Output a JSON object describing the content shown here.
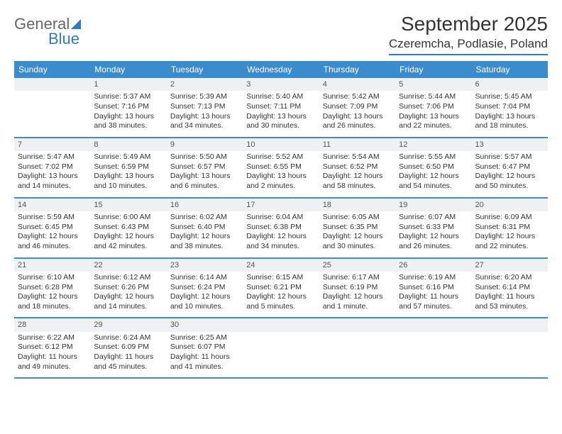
{
  "logo": {
    "word1": "General",
    "word2": "Blue"
  },
  "title": "September 2025",
  "location": "Czeremcha, Podlasie, Poland",
  "dow": [
    "Sunday",
    "Monday",
    "Tuesday",
    "Wednesday",
    "Thursday",
    "Friday",
    "Saturday"
  ],
  "colors": {
    "accent": "#3c8ccc",
    "logo_blue": "#2f7ac0",
    "daynum_bg": "#eef0f1",
    "text": "#333333",
    "bg": "#ffffff"
  },
  "weeks": [
    [
      {
        "n": "",
        "sunrise": "",
        "sunset": "",
        "daylight": ""
      },
      {
        "n": "1",
        "sunrise": "Sunrise: 5:37 AM",
        "sunset": "Sunset: 7:16 PM",
        "daylight": "Daylight: 13 hours and 38 minutes."
      },
      {
        "n": "2",
        "sunrise": "Sunrise: 5:39 AM",
        "sunset": "Sunset: 7:13 PM",
        "daylight": "Daylight: 13 hours and 34 minutes."
      },
      {
        "n": "3",
        "sunrise": "Sunrise: 5:40 AM",
        "sunset": "Sunset: 7:11 PM",
        "daylight": "Daylight: 13 hours and 30 minutes."
      },
      {
        "n": "4",
        "sunrise": "Sunrise: 5:42 AM",
        "sunset": "Sunset: 7:09 PM",
        "daylight": "Daylight: 13 hours and 26 minutes."
      },
      {
        "n": "5",
        "sunrise": "Sunrise: 5:44 AM",
        "sunset": "Sunset: 7:06 PM",
        "daylight": "Daylight: 13 hours and 22 minutes."
      },
      {
        "n": "6",
        "sunrise": "Sunrise: 5:45 AM",
        "sunset": "Sunset: 7:04 PM",
        "daylight": "Daylight: 13 hours and 18 minutes."
      }
    ],
    [
      {
        "n": "7",
        "sunrise": "Sunrise: 5:47 AM",
        "sunset": "Sunset: 7:02 PM",
        "daylight": "Daylight: 13 hours and 14 minutes."
      },
      {
        "n": "8",
        "sunrise": "Sunrise: 5:49 AM",
        "sunset": "Sunset: 6:59 PM",
        "daylight": "Daylight: 13 hours and 10 minutes."
      },
      {
        "n": "9",
        "sunrise": "Sunrise: 5:50 AM",
        "sunset": "Sunset: 6:57 PM",
        "daylight": "Daylight: 13 hours and 6 minutes."
      },
      {
        "n": "10",
        "sunrise": "Sunrise: 5:52 AM",
        "sunset": "Sunset: 6:55 PM",
        "daylight": "Daylight: 13 hours and 2 minutes."
      },
      {
        "n": "11",
        "sunrise": "Sunrise: 5:54 AM",
        "sunset": "Sunset: 6:52 PM",
        "daylight": "Daylight: 12 hours and 58 minutes."
      },
      {
        "n": "12",
        "sunrise": "Sunrise: 5:55 AM",
        "sunset": "Sunset: 6:50 PM",
        "daylight": "Daylight: 12 hours and 54 minutes."
      },
      {
        "n": "13",
        "sunrise": "Sunrise: 5:57 AM",
        "sunset": "Sunset: 6:47 PM",
        "daylight": "Daylight: 12 hours and 50 minutes."
      }
    ],
    [
      {
        "n": "14",
        "sunrise": "Sunrise: 5:59 AM",
        "sunset": "Sunset: 6:45 PM",
        "daylight": "Daylight: 12 hours and 46 minutes."
      },
      {
        "n": "15",
        "sunrise": "Sunrise: 6:00 AM",
        "sunset": "Sunset: 6:43 PM",
        "daylight": "Daylight: 12 hours and 42 minutes."
      },
      {
        "n": "16",
        "sunrise": "Sunrise: 6:02 AM",
        "sunset": "Sunset: 6:40 PM",
        "daylight": "Daylight: 12 hours and 38 minutes."
      },
      {
        "n": "17",
        "sunrise": "Sunrise: 6:04 AM",
        "sunset": "Sunset: 6:38 PM",
        "daylight": "Daylight: 12 hours and 34 minutes."
      },
      {
        "n": "18",
        "sunrise": "Sunrise: 6:05 AM",
        "sunset": "Sunset: 6:35 PM",
        "daylight": "Daylight: 12 hours and 30 minutes."
      },
      {
        "n": "19",
        "sunrise": "Sunrise: 6:07 AM",
        "sunset": "Sunset: 6:33 PM",
        "daylight": "Daylight: 12 hours and 26 minutes."
      },
      {
        "n": "20",
        "sunrise": "Sunrise: 6:09 AM",
        "sunset": "Sunset: 6:31 PM",
        "daylight": "Daylight: 12 hours and 22 minutes."
      }
    ],
    [
      {
        "n": "21",
        "sunrise": "Sunrise: 6:10 AM",
        "sunset": "Sunset: 6:28 PM",
        "daylight": "Daylight: 12 hours and 18 minutes."
      },
      {
        "n": "22",
        "sunrise": "Sunrise: 6:12 AM",
        "sunset": "Sunset: 6:26 PM",
        "daylight": "Daylight: 12 hours and 14 minutes."
      },
      {
        "n": "23",
        "sunrise": "Sunrise: 6:14 AM",
        "sunset": "Sunset: 6:24 PM",
        "daylight": "Daylight: 12 hours and 10 minutes."
      },
      {
        "n": "24",
        "sunrise": "Sunrise: 6:15 AM",
        "sunset": "Sunset: 6:21 PM",
        "daylight": "Daylight: 12 hours and 5 minutes."
      },
      {
        "n": "25",
        "sunrise": "Sunrise: 6:17 AM",
        "sunset": "Sunset: 6:19 PM",
        "daylight": "Daylight: 12 hours and 1 minute."
      },
      {
        "n": "26",
        "sunrise": "Sunrise: 6:19 AM",
        "sunset": "Sunset: 6:16 PM",
        "daylight": "Daylight: 11 hours and 57 minutes."
      },
      {
        "n": "27",
        "sunrise": "Sunrise: 6:20 AM",
        "sunset": "Sunset: 6:14 PM",
        "daylight": "Daylight: 11 hours and 53 minutes."
      }
    ],
    [
      {
        "n": "28",
        "sunrise": "Sunrise: 6:22 AM",
        "sunset": "Sunset: 6:12 PM",
        "daylight": "Daylight: 11 hours and 49 minutes."
      },
      {
        "n": "29",
        "sunrise": "Sunrise: 6:24 AM",
        "sunset": "Sunset: 6:09 PM",
        "daylight": "Daylight: 11 hours and 45 minutes."
      },
      {
        "n": "30",
        "sunrise": "Sunrise: 6:25 AM",
        "sunset": "Sunset: 6:07 PM",
        "daylight": "Daylight: 11 hours and 41 minutes."
      },
      {
        "n": "",
        "sunrise": "",
        "sunset": "",
        "daylight": ""
      },
      {
        "n": "",
        "sunrise": "",
        "sunset": "",
        "daylight": ""
      },
      {
        "n": "",
        "sunrise": "",
        "sunset": "",
        "daylight": ""
      },
      {
        "n": "",
        "sunrise": "",
        "sunset": "",
        "daylight": ""
      }
    ]
  ]
}
